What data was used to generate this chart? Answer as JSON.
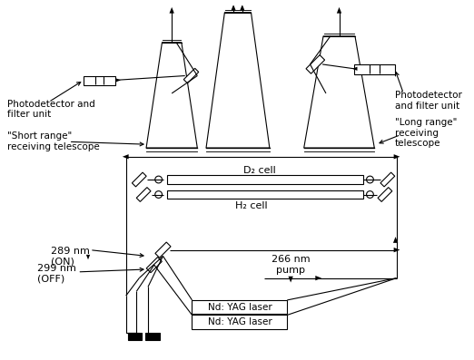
{
  "bg_color": "#ffffff",
  "line_color": "#000000",
  "fig_width": 5.22,
  "fig_height": 3.97,
  "dpi": 100,
  "labels": {
    "photodetector_left": "Photodetector and\nfilter unit",
    "photodetector_right": "Photodetector\nand filter unit",
    "short_range": "\"Short range\"\nreceiving telescope",
    "long_range": "\"Long range\"\nreceiving\ntelescope",
    "d2_cell": "D₂ cell",
    "h2_cell": "H₂ cell",
    "nm289": "289 nm\n(ON)",
    "nm299": "299 nm\n(OFF)",
    "nm266": "266 nm\npump",
    "yag1": "Nd: YAG laser",
    "yag2": "Nd: YAG laser"
  }
}
